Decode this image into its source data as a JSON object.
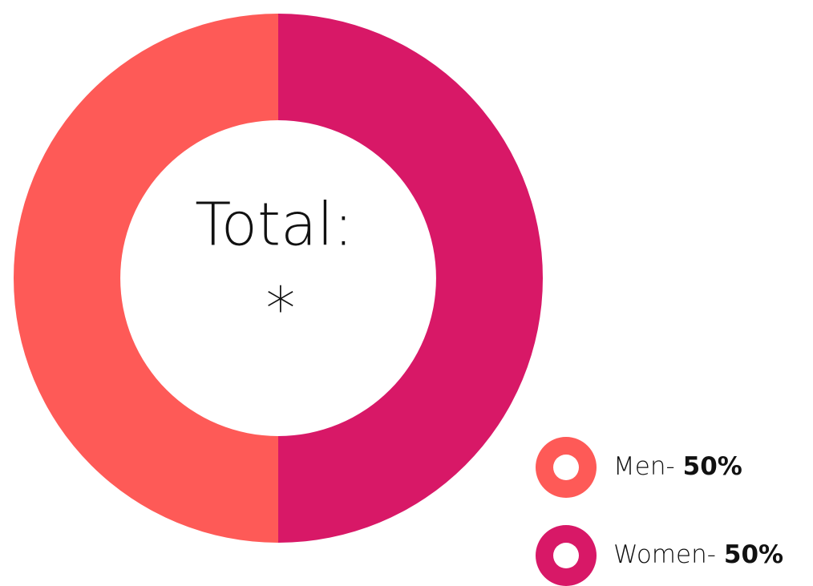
{
  "chart_data": {
    "type": "donut",
    "center_label": "Total:",
    "center_value": "*",
    "categories": [
      "Men-",
      "Women-"
    ],
    "values": [
      50,
      50
    ],
    "value_labels": [
      "50%",
      "50%"
    ],
    "colors": [
      "#fe5a57",
      "#d81867"
    ],
    "legend": "bottom-right"
  }
}
